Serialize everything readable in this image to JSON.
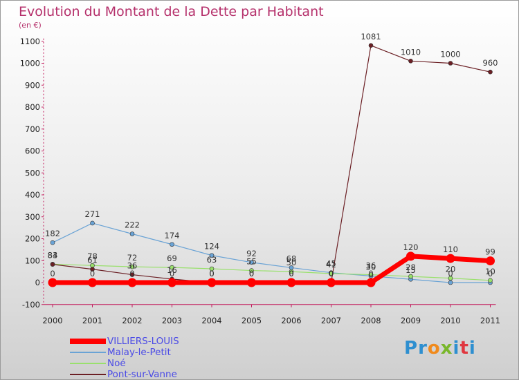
{
  "header": {
    "title": "Evolution du Montant de la Dette par Habitant",
    "unit": "(en €)"
  },
  "chart_data": {
    "type": "line",
    "title": "Evolution du Montant de la Dette par Habitant",
    "ylabel": "(en €)",
    "xlabel": "",
    "x": [
      "2000",
      "2001",
      "2002",
      "2003",
      "2004",
      "2005",
      "2006",
      "2007",
      "2008",
      "2009",
      "2010",
      "2011"
    ],
    "ylim": [
      -100,
      1100
    ],
    "yticks": [
      -100,
      0,
      100,
      200,
      300,
      400,
      500,
      600,
      700,
      800,
      900,
      1000,
      1100
    ],
    "grid": false,
    "legend": "bottom-left",
    "series": [
      {
        "name": "VILLIERS-LOUIS",
        "color": "#ff0000",
        "values": [
          0,
          0,
          0,
          0,
          0,
          0,
          0,
          0,
          0,
          120,
          110,
          99
        ]
      },
      {
        "name": "Malay-le-Petit",
        "color": "#6aa3d5",
        "values": [
          182,
          271,
          222,
          174,
          124,
          92,
          68,
          45,
          30,
          15,
          0,
          0
        ]
      },
      {
        "name": "Noé",
        "color": "#99e06c",
        "values": [
          84,
          78,
          72,
          69,
          63,
          55,
          50,
          41,
          36,
          28,
          20,
          10
        ]
      },
      {
        "name": "Pont-sur-Vanne",
        "color": "#6b1f24",
        "values": [
          83,
          61,
          36,
          16,
          0,
          0,
          0,
          0,
          1081,
          1010,
          1000,
          960
        ]
      }
    ]
  },
  "logo": {
    "text": "Proxiti",
    "letters": [
      "P",
      "r",
      "o",
      "x",
      "i",
      "t",
      "i"
    ],
    "colors": [
      "#2e8fd0",
      "#2e8fd0",
      "#f08a1c",
      "#79b72b",
      "#2e8fd0",
      "#e0373f",
      "#2e8fd0"
    ]
  }
}
